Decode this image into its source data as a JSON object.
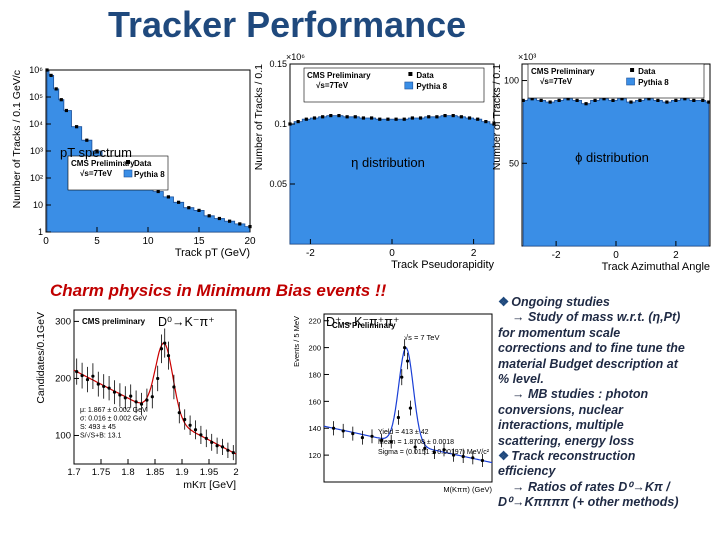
{
  "slide": {
    "title": "Tracker Performance",
    "section_title": "Charm physics in Minimum Bias events !!"
  },
  "notes": [
    {
      "text": "Ongoing studies",
      "bullet": true,
      "indent": false
    },
    {
      "text": "→ Study of mass w.r.t. (η,Pt)",
      "bullet": false,
      "indent": true
    },
    {
      "text": "for momentum scale",
      "bullet": false,
      "indent": false
    },
    {
      "text": "corrections and to fine tune the",
      "bullet": false,
      "indent": false
    },
    {
      "text": "material Budget description at",
      "bullet": false,
      "indent": false
    },
    {
      "text": "% level.",
      "bullet": false,
      "indent": false
    },
    {
      "text": "→ MB studies : photon",
      "bullet": false,
      "indent": true
    },
    {
      "text": "conversions, nuclear",
      "bullet": false,
      "indent": false
    },
    {
      "text": "interactions, multiple",
      "bullet": false,
      "indent": false
    },
    {
      "text": "scattering, energy loss",
      "bullet": false,
      "indent": false
    },
    {
      "text": "Track reconstruction",
      "bullet": true,
      "indent": false
    },
    {
      "text": "efficiency",
      "bullet": false,
      "indent": false
    },
    {
      "text": "→ Ratios of rates D⁰→Kπ /",
      "bullet": false,
      "indent": true
    },
    {
      "text": "D⁰→Kππππ (+ other methods)",
      "bullet": false,
      "indent": false
    }
  ],
  "colors": {
    "title": "#1f497d",
    "section": "#c00000",
    "fill": "#3a8ee6",
    "data": "#000000",
    "fit": "#cc0000"
  },
  "chart_data": [
    {
      "id": "pt",
      "type": "area",
      "label": "pT spectrum",
      "legend": [
        "CMS Preliminary",
        "√s=7TeV",
        "Data",
        "Pythia 8"
      ],
      "series": [
        {
          "name": "Data"
        },
        {
          "name": "Pythia 8"
        }
      ],
      "xlabel": "Track pT (GeV)",
      "ylabel": "Number of Tracks / 0.1 GeV/c",
      "xlim": [
        0,
        20
      ],
      "ylim_log10": [
        0,
        6
      ],
      "log_y": true,
      "xticks": [
        "0",
        "5",
        "10",
        "15",
        "20"
      ],
      "yticks": [
        "1",
        "10",
        "10²",
        "10³",
        "10⁴",
        "10⁵",
        "10⁶"
      ],
      "x": [
        0.1,
        0.5,
        1,
        1.5,
        2,
        3,
        4,
        5,
        6,
        7,
        8,
        9,
        10,
        11,
        12,
        13,
        14,
        15,
        16,
        17,
        18,
        19,
        20
      ],
      "log10_values": [
        6.0,
        5.8,
        5.3,
        4.9,
        4.5,
        3.9,
        3.4,
        3.0,
        2.7,
        2.4,
        2.1,
        1.9,
        1.7,
        1.5,
        1.3,
        1.1,
        0.9,
        0.8,
        0.6,
        0.5,
        0.4,
        0.3,
        0.2
      ]
    },
    {
      "id": "eta",
      "type": "area",
      "label": "η distribution",
      "legend": [
        "CMS Preliminary",
        "√s=7TeV",
        "Data",
        "Pythia 8"
      ],
      "series": [
        {
          "name": "Data"
        },
        {
          "name": "Pythia 8"
        }
      ],
      "xlabel": "Track Pseudorapidity",
      "ylabel": "Number of Tracks / 0.1",
      "xlim": [
        -2.5,
        2.5
      ],
      "ylim": [
        0,
        0.15
      ],
      "y_multiplier": "×10⁶",
      "xticks": [
        "-2",
        "0",
        "2"
      ],
      "yticks": [
        "0.05",
        "0.1",
        "0.15"
      ],
      "x": [
        -2.5,
        -2.3,
        -2.1,
        -1.9,
        -1.7,
        -1.5,
        -1.3,
        -1.1,
        -0.9,
        -0.7,
        -0.5,
        -0.3,
        -0.1,
        0.1,
        0.3,
        0.5,
        0.7,
        0.9,
        1.1,
        1.3,
        1.5,
        1.7,
        1.9,
        2.1,
        2.3,
        2.5
      ],
      "values": [
        0.1,
        0.102,
        0.104,
        0.105,
        0.106,
        0.107,
        0.107,
        0.106,
        0.106,
        0.105,
        0.105,
        0.104,
        0.104,
        0.104,
        0.104,
        0.105,
        0.105,
        0.106,
        0.106,
        0.107,
        0.107,
        0.106,
        0.105,
        0.104,
        0.102,
        0.1
      ]
    },
    {
      "id": "phi",
      "type": "area",
      "label": "ϕ distribution",
      "legend": [
        "CMS Preliminary",
        "√s=7TeV",
        "Data",
        "Pythia 8"
      ],
      "series": [
        {
          "name": "Data"
        },
        {
          "name": "Pythia 8"
        }
      ],
      "xlabel": "Track Azimuthal Angle",
      "ylabel": "Number of Tracks / 0.1",
      "xlim": [
        -3.14,
        3.14
      ],
      "ylim": [
        0,
        110
      ],
      "y_multiplier": "×10³",
      "xticks": [
        "-2",
        "0",
        "2"
      ],
      "yticks": [
        "50",
        "100"
      ],
      "x": [
        -3.1,
        -2.8,
        -2.5,
        -2.2,
        -1.9,
        -1.6,
        -1.3,
        -1,
        -0.7,
        -0.4,
        -0.1,
        0.2,
        0.5,
        0.8,
        1.1,
        1.4,
        1.7,
        2,
        2.3,
        2.6,
        2.9,
        3.1
      ],
      "values": [
        88,
        89,
        88,
        87,
        88,
        89,
        88,
        86,
        88,
        89,
        88,
        89,
        87,
        88,
        89,
        88,
        87,
        88,
        89,
        88,
        88,
        87
      ]
    },
    {
      "id": "d0",
      "type": "scatter",
      "label": "D⁰→K⁻π⁺",
      "header": "CMS preliminary",
      "series": [
        {
          "name": "Data"
        },
        {
          "name": "Fit"
        }
      ],
      "xlabel": "mKπ [GeV]",
      "ylabel": "Candidates/0.1GeV",
      "xlim": [
        1.7,
        2.0
      ],
      "ylim": [
        50,
        320
      ],
      "xticks": [
        "1.7",
        "1.75",
        "1.8",
        "1.85",
        "1.9",
        "1.95",
        "2"
      ],
      "yticks": [
        "100",
        "200",
        "300"
      ],
      "fit_text": [
        "μ: 1.867 ± 0.002 GeV",
        "σ: 0.016 ± 0.002 GeV",
        "S: 493 ± 45",
        "S/√S+B: 13.1"
      ],
      "mean": 1.867,
      "sigma": 0.016,
      "x": [
        1.705,
        1.715,
        1.725,
        1.735,
        1.745,
        1.755,
        1.765,
        1.775,
        1.785,
        1.795,
        1.805,
        1.815,
        1.825,
        1.835,
        1.845,
        1.855,
        1.862,
        1.868,
        1.875,
        1.885,
        1.895,
        1.905,
        1.915,
        1.925,
        1.935,
        1.945,
        1.955,
        1.965,
        1.975,
        1.985,
        1.995
      ],
      "values": [
        212,
        205,
        198,
        204,
        190,
        186,
        183,
        176,
        171,
        166,
        169,
        159,
        155,
        162,
        168,
        200,
        252,
        262,
        240,
        185,
        140,
        128,
        118,
        110,
        101,
        95,
        88,
        82,
        80,
        74,
        70
      ]
    },
    {
      "id": "dplus",
      "type": "scatter",
      "label": "D⁺→K⁻π⁺π⁺",
      "header": "CMS Preliminary",
      "subheader": "√s = 7 TeV",
      "series": [
        {
          "name": "Data"
        },
        {
          "name": "Fit"
        }
      ],
      "xlabel": "M(Kππ) (GeV)",
      "ylabel": "Events / 5 MeV",
      "xlim": [
        1.7,
        2.05
      ],
      "ylim": [
        100,
        225
      ],
      "yticks": [
        "120",
        "140",
        "160",
        "180",
        "200",
        "220"
      ],
      "fit_text": [
        "Yield = 413 ± 42",
        "Mean = 1.8708 ± 0.0018",
        "Sigma = (0.0151 ± 0.00197) MeV/c²"
      ],
      "mean": 1.871,
      "sigma": 0.015,
      "x": [
        1.72,
        1.74,
        1.76,
        1.78,
        1.8,
        1.82,
        1.84,
        1.855,
        1.862,
        1.868,
        1.874,
        1.88,
        1.89,
        1.91,
        1.93,
        1.95,
        1.97,
        1.99,
        2.01,
        2.03
      ],
      "values": [
        140,
        138,
        136,
        133,
        134,
        131,
        130,
        148,
        178,
        200,
        190,
        155,
        126,
        125,
        122,
        124,
        120,
        119,
        118,
        116
      ]
    }
  ]
}
